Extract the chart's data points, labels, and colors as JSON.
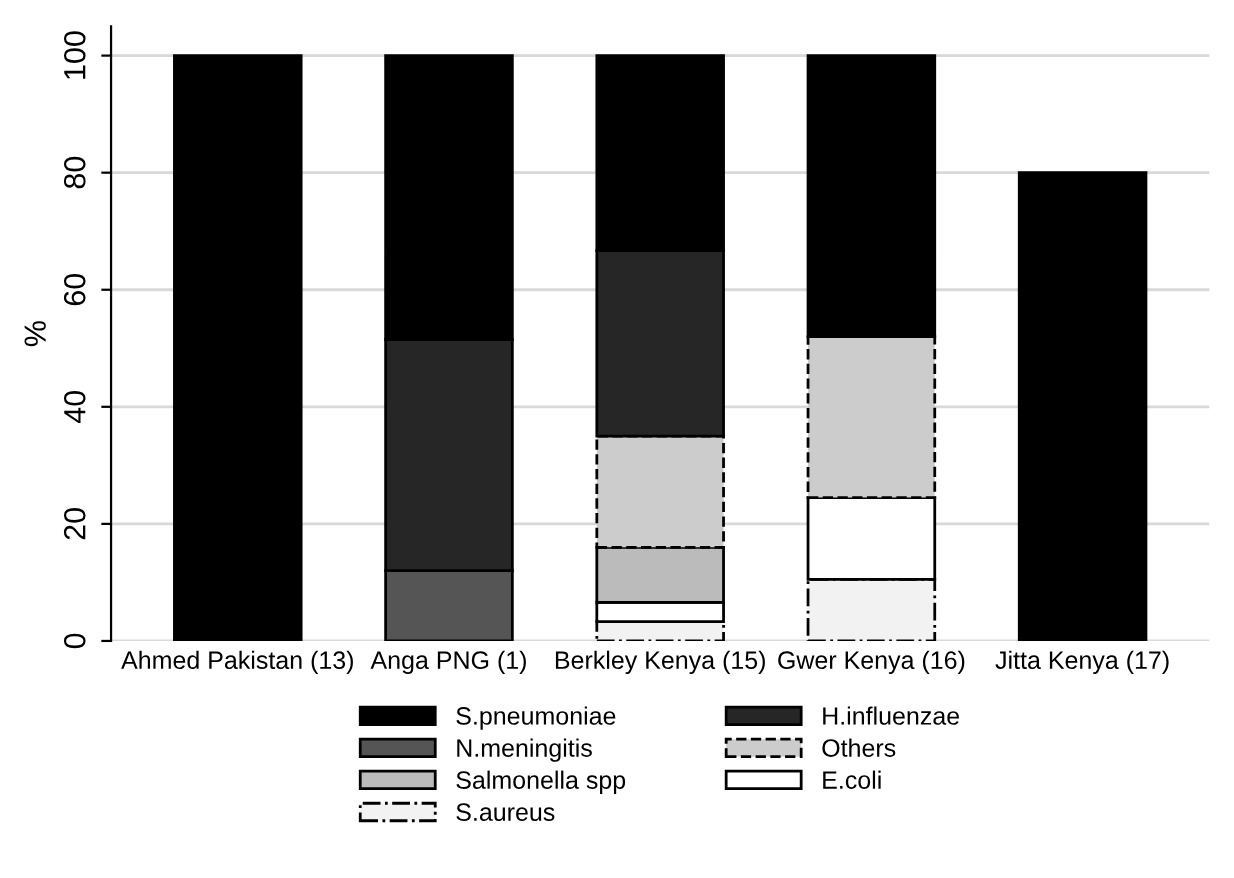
{
  "chart_data": {
    "type": "bar",
    "stacked": true,
    "ylabel": "%",
    "categories": [
      "Ahmed Pakistan (13)",
      "Anga PNG (1)",
      "Berkley Kenya (15)",
      "Gwer Kenya (16)",
      "Jitta Kenya (17)"
    ],
    "series": [
      {
        "name": "S.aureus",
        "color": "#f2f2f2",
        "line_style": "dashdot",
        "values": [
          null,
          null,
          3.3,
          10.5,
          null
        ]
      },
      {
        "name": "E.coli",
        "color": "#ffffff",
        "line_style": "solid",
        "values": [
          null,
          null,
          3.3,
          14,
          null
        ]
      },
      {
        "name": "Salmonella spp",
        "color": "#bbbbbb",
        "line_style": "solid",
        "values": [
          null,
          null,
          9.4,
          null,
          null
        ]
      },
      {
        "name": "Others",
        "color": "#cccccc",
        "line_style": "dashed",
        "values": [
          null,
          null,
          19,
          27.5,
          null
        ]
      },
      {
        "name": "N.meningitis",
        "color": "#555555",
        "line_style": "solid",
        "values": [
          null,
          12,
          null,
          null,
          null
        ]
      },
      {
        "name": "H.influenzae",
        "color": "#262626",
        "line_style": "solid",
        "values": [
          null,
          39.5,
          31.7,
          null,
          null
        ]
      },
      {
        "name": "S.pneumoniae",
        "color": "#000000",
        "line_style": "solid",
        "values": [
          100,
          48.5,
          33.3,
          48,
          80
        ]
      }
    ],
    "ylim": [
      0,
      105
    ],
    "yticks": [
      0,
      20,
      40,
      60,
      80,
      100
    ],
    "grid": "y",
    "legend": "bottom"
  }
}
